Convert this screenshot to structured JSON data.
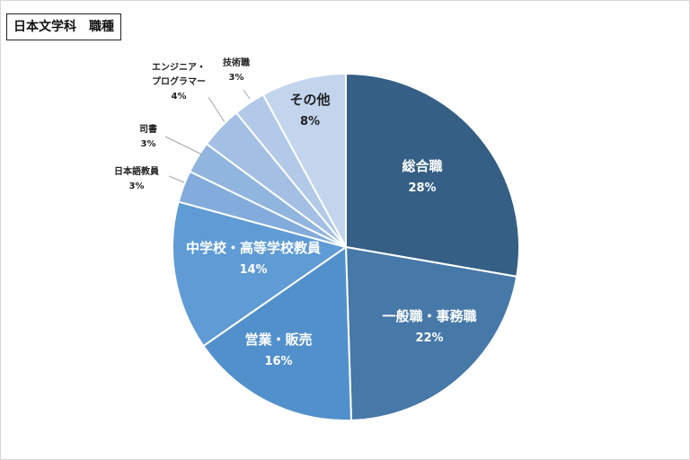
{
  "title": "日本文学科　職種",
  "chart_data": {
    "type": "pie",
    "title": "日本文学科　職種",
    "unit": "%",
    "slices": [
      {
        "label": "総合職",
        "value": 28,
        "value_label": "28%",
        "color": "#355f85",
        "text_color": "#ffffff",
        "label_inside": true
      },
      {
        "label": "一般職・事務職",
        "value": 22,
        "value_label": "22%",
        "color": "#4678a8",
        "text_color": "#ffffff",
        "label_inside": true
      },
      {
        "label": "営業・販売",
        "value": 16,
        "value_label": "16%",
        "color": "#5290cc",
        "text_color": "#ffffff",
        "label_inside": true
      },
      {
        "label": "中学校・高等学校教員",
        "value": 14,
        "value_label": "14%",
        "color": "#5f9bd4",
        "text_color": "#ffffff",
        "label_inside": true
      },
      {
        "label": "日本語教員",
        "value": 3,
        "value_label": "3%",
        "color": "#83acdc",
        "text_color": "#222222",
        "label_inside": false
      },
      {
        "label": "司書",
        "value": 3,
        "value_label": "3%",
        "color": "#90b5df",
        "text_color": "#222222",
        "label_inside": false
      },
      {
        "label": "エンジニア・\nプログラマー",
        "value": 4,
        "value_label": "4%",
        "color": "#a3bfe3",
        "text_color": "#222222",
        "label_inside": false
      },
      {
        "label": "技術職",
        "value": 3,
        "value_label": "3%",
        "color": "#b2c9e8",
        "text_color": "#222222",
        "label_inside": false
      },
      {
        "label": "その他",
        "value": 8,
        "value_label": "8%",
        "color": "#c3d4ed",
        "text_color": "#222222",
        "label_inside": true
      }
    ]
  }
}
